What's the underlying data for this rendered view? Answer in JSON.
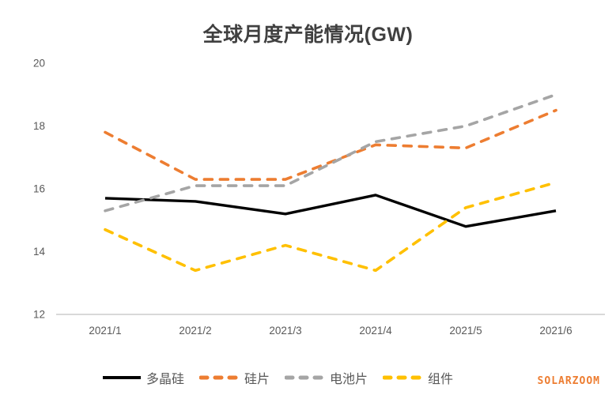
{
  "watermark": "SOLARZOOM",
  "chart_data": {
    "type": "line",
    "title": "全球月度产能情况(GW)",
    "categories": [
      "2021/1",
      "2021/2",
      "2021/3",
      "2021/4",
      "2021/5",
      "2021/6"
    ],
    "series": [
      {
        "name": "多晶硅",
        "color": "#000000",
        "dashed": false,
        "values": [
          15.7,
          15.6,
          15.2,
          15.8,
          14.8,
          15.3
        ]
      },
      {
        "name": "硅片",
        "color": "#ED7D31",
        "dashed": true,
        "values": [
          17.8,
          16.3,
          16.3,
          17.4,
          17.3,
          18.5
        ]
      },
      {
        "name": "电池片",
        "color": "#A5A5A5",
        "dashed": true,
        "values": [
          15.3,
          16.1,
          16.1,
          17.5,
          18.0,
          19.0
        ]
      },
      {
        "name": "组件",
        "color": "#FFC000",
        "dashed": true,
        "values": [
          14.7,
          13.4,
          14.2,
          13.4,
          15.4,
          16.2
        ]
      }
    ],
    "xlabel": "",
    "ylabel": "",
    "ylim": [
      12,
      20
    ],
    "yticks": [
      12,
      14,
      16,
      18,
      20
    ],
    "grid": false,
    "legend_position": "bottom",
    "axis_color": "#D9D9D9",
    "label_color": "#595959"
  }
}
